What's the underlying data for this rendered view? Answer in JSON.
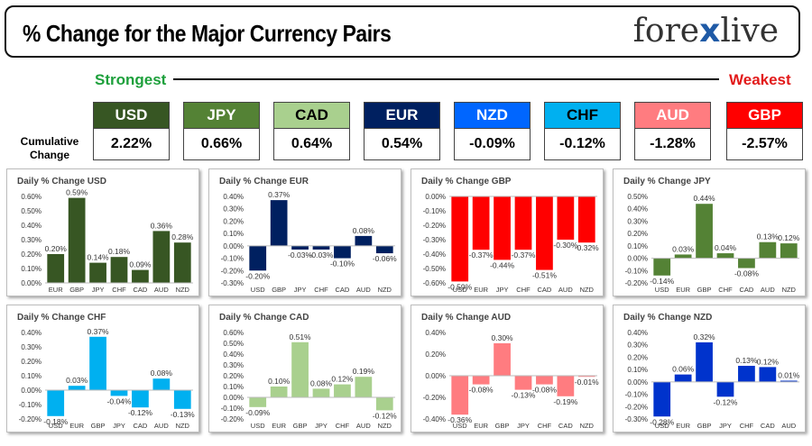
{
  "header": {
    "title": "% Change for the Major Currency Pairs",
    "logo_left": "fore",
    "logo_x": "x",
    "logo_right": "live"
  },
  "labels": {
    "strongest": "Strongest",
    "weakest": "Weakest",
    "cumulative": "Cumulative Change"
  },
  "currencies": [
    {
      "code": "USD",
      "value": "2.22%",
      "color": "#375623",
      "text": "#ffffff"
    },
    {
      "code": "JPY",
      "value": "0.66%",
      "color": "#548235",
      "text": "#ffffff"
    },
    {
      "code": "CAD",
      "value": "0.64%",
      "color": "#a9d08e",
      "text": "#000000"
    },
    {
      "code": "EUR",
      "value": "0.54%",
      "color": "#002060",
      "text": "#ffffff"
    },
    {
      "code": "NZD",
      "value": "-0.09%",
      "color": "#0066ff",
      "text": "#ffffff"
    },
    {
      "code": "CHF",
      "value": "-0.12%",
      "color": "#00b0f0",
      "text": "#000000"
    },
    {
      "code": "AUD",
      "value": "-1.28%",
      "color": "#ff7c80",
      "text": "#ffffff"
    },
    {
      "code": "GBP",
      "value": "-2.57%",
      "color": "#ff0000",
      "text": "#ffffff"
    }
  ],
  "chart_data": [
    {
      "type": "bar",
      "title": "Daily % Change USD",
      "color": "#375623",
      "categories": [
        "EUR",
        "GBP",
        "JPY",
        "CHF",
        "CAD",
        "AUD",
        "NZD"
      ],
      "values": [
        0.2,
        0.59,
        0.14,
        0.18,
        0.09,
        0.36,
        0.28
      ],
      "ylim": [
        0,
        0.6
      ],
      "yticks": [
        0,
        0.1,
        0.2,
        0.3,
        0.4,
        0.5,
        0.6
      ],
      "ytick_labels": [
        "0.00%",
        "0.10%",
        "0.20%",
        "0.30%",
        "0.40%",
        "0.50%",
        "0.60%"
      ],
      "data_labels": [
        "0.20%",
        "0.59%",
        "0.14%",
        "0.18%",
        "0.09%",
        "0.36%",
        "0.28%"
      ]
    },
    {
      "type": "bar",
      "title": "Daily % Change EUR",
      "color": "#002060",
      "categories": [
        "USD",
        "GBP",
        "JPY",
        "CHF",
        "CAD",
        "AUD",
        "NZD"
      ],
      "values": [
        -0.2,
        0.37,
        -0.03,
        -0.03,
        -0.1,
        0.08,
        -0.06
      ],
      "ylim": [
        -0.3,
        0.4
      ],
      "yticks": [
        -0.3,
        -0.2,
        -0.1,
        0,
        0.1,
        0.2,
        0.3,
        0.4
      ],
      "ytick_labels": [
        "-0.30%",
        "-0.20%",
        "-0.10%",
        "0.00%",
        "0.10%",
        "0.20%",
        "0.30%",
        "0.40%"
      ],
      "data_labels": [
        "-0.20%",
        "0.37%",
        "-0.03%",
        "-0.03%",
        "-0.10%",
        "0.08%",
        "-0.06%"
      ]
    },
    {
      "type": "bar",
      "title": "Daily % Change GBP",
      "color": "#ff0000",
      "categories": [
        "USD",
        "EUR",
        "JPY",
        "CHF",
        "CAD",
        "AUD",
        "NZD"
      ],
      "values": [
        -0.59,
        -0.37,
        -0.44,
        -0.37,
        -0.51,
        -0.3,
        -0.32
      ],
      "ylim": [
        -0.6,
        0
      ],
      "yticks": [
        -0.6,
        -0.5,
        -0.4,
        -0.3,
        -0.2,
        -0.1,
        0
      ],
      "ytick_labels": [
        "-0.60%",
        "-0.50%",
        "-0.40%",
        "-0.30%",
        "-0.20%",
        "-0.10%",
        "0.00%"
      ],
      "data_labels": [
        "-0.59%",
        "-0.37%",
        "-0.44%",
        "-0.37%",
        "-0.51%",
        "-0.30%",
        "-0.32%"
      ]
    },
    {
      "type": "bar",
      "title": "Daily % Change JPY",
      "color": "#548235",
      "categories": [
        "USD",
        "EUR",
        "GBP",
        "CHF",
        "CAD",
        "AUD",
        "NZD"
      ],
      "values": [
        -0.14,
        0.03,
        0.44,
        0.04,
        -0.08,
        0.13,
        0.12
      ],
      "ylim": [
        -0.2,
        0.5
      ],
      "yticks": [
        -0.2,
        -0.1,
        0,
        0.1,
        0.2,
        0.3,
        0.4,
        0.5
      ],
      "ytick_labels": [
        "-0.20%",
        "-0.10%",
        "0.00%",
        "0.10%",
        "0.20%",
        "0.30%",
        "0.40%",
        "0.50%"
      ],
      "data_labels": [
        "-0.14%",
        "0.03%",
        "0.44%",
        "0.04%",
        "-0.08%",
        "0.13%",
        "0.12%"
      ]
    },
    {
      "type": "bar",
      "title": "Daily % Change CHF",
      "color": "#00b0f0",
      "categories": [
        "USD",
        "EUR",
        "GBP",
        "JPY",
        "CAD",
        "AUD",
        "NZD"
      ],
      "values": [
        -0.18,
        0.03,
        0.37,
        -0.04,
        -0.12,
        0.08,
        -0.13
      ],
      "ylim": [
        -0.2,
        0.4
      ],
      "yticks": [
        -0.2,
        -0.1,
        0,
        0.1,
        0.2,
        0.3,
        0.4
      ],
      "ytick_labels": [
        "-0.20%",
        "-0.10%",
        "0.00%",
        "0.10%",
        "0.20%",
        "0.30%",
        "0.40%"
      ],
      "data_labels": [
        "-0.18%",
        "0.03%",
        "0.37%",
        "-0.04%",
        "-0.12%",
        "0.08%",
        "-0.13%"
      ]
    },
    {
      "type": "bar",
      "title": "Daily % Change CAD",
      "color": "#a9d08e",
      "categories": [
        "USD",
        "EUR",
        "GBP",
        "JPY",
        "CHF",
        "AUD",
        "NZD"
      ],
      "values": [
        -0.09,
        0.1,
        0.51,
        0.08,
        0.12,
        0.19,
        -0.12
      ],
      "ylim": [
        -0.2,
        0.6
      ],
      "yticks": [
        -0.2,
        -0.1,
        0,
        0.1,
        0.2,
        0.3,
        0.4,
        0.5,
        0.6
      ],
      "ytick_labels": [
        "-0.20%",
        "-0.10%",
        "0.00%",
        "0.10%",
        "0.20%",
        "0.30%",
        "0.40%",
        "0.50%",
        "0.60%"
      ],
      "data_labels": [
        "-0.09%",
        "0.10%",
        "0.51%",
        "0.08%",
        "0.12%",
        "0.19%",
        "-0.12%"
      ]
    },
    {
      "type": "bar",
      "title": "Daily % Change AUD",
      "color": "#ff7c80",
      "categories": [
        "USD",
        "EUR",
        "GBP",
        "JPY",
        "CHF",
        "CAD",
        "NZD"
      ],
      "values": [
        -0.36,
        -0.08,
        0.3,
        -0.13,
        -0.08,
        -0.19,
        -0.01
      ],
      "ylim": [
        -0.4,
        0.4
      ],
      "yticks": [
        -0.4,
        -0.2,
        0,
        0.2,
        0.4
      ],
      "ytick_labels": [
        "-0.40%",
        "-0.20%",
        "0.00%",
        "0.20%",
        "0.40%"
      ],
      "data_labels": [
        "-0.36%",
        "-0.08%",
        "0.30%",
        "-0.13%",
        "-0.08%",
        "-0.19%",
        "-0.01%"
      ]
    },
    {
      "type": "bar",
      "title": "Daily % Change NZD",
      "color": "#0033cc",
      "categories": [
        "USD",
        "EUR",
        "GBP",
        "JPY",
        "CHF",
        "CAD",
        "AUD"
      ],
      "values": [
        -0.28,
        0.06,
        0.32,
        -0.12,
        0.13,
        0.12,
        0.01
      ],
      "ylim": [
        -0.3,
        0.4
      ],
      "yticks": [
        -0.3,
        -0.2,
        -0.1,
        0,
        0.1,
        0.2,
        0.3,
        0.4
      ],
      "ytick_labels": [
        "-0.30%",
        "-0.20%",
        "-0.10%",
        "0.00%",
        "0.10%",
        "0.20%",
        "0.30%",
        "0.40%"
      ],
      "data_labels": [
        "-0.28%",
        "0.06%",
        "0.32%",
        "-0.12%",
        "0.13%",
        "0.12%",
        "0.01%"
      ]
    }
  ]
}
